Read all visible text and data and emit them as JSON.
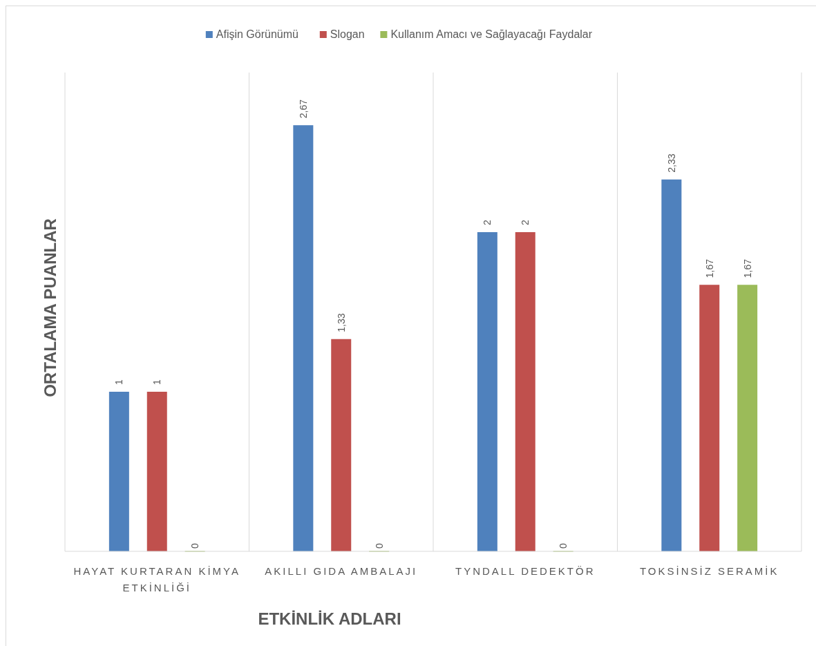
{
  "chart_data": {
    "type": "bar",
    "xlabel": "ETKİNLİK ADLARI",
    "ylabel": "ORTALAMA PUANLAR",
    "categories": [
      "HAYAT KURTARAN KİMYA ETKİNLİĞİ",
      "AKILLI GIDA AMBALAJI",
      "TYNDALL DEDEKTÖR",
      "TOKSİNSİZ SERAMİK"
    ],
    "series": [
      {
        "name": "Afişin Görünümü",
        "color": "#4f81bd",
        "values": [
          1,
          2.67,
          2,
          2.33
        ],
        "value_labels": [
          "1",
          "2,67",
          "2",
          "2,33"
        ]
      },
      {
        "name": "Slogan",
        "color": "#c0504d",
        "values": [
          1,
          1.33,
          2,
          1.67
        ],
        "value_labels": [
          "1",
          "1,33",
          "2",
          "1,67"
        ]
      },
      {
        "name": "Kullanım Amacı ve Sağlayacağı Faydalar",
        "color": "#9bbb59",
        "values": [
          0,
          0,
          0,
          1.67
        ],
        "value_labels": [
          "0",
          "0",
          "0",
          "1,67"
        ]
      }
    ],
    "ylim": [
      0,
      3
    ],
    "tick_labels": "x",
    "grid": "x",
    "legend": "top"
  }
}
